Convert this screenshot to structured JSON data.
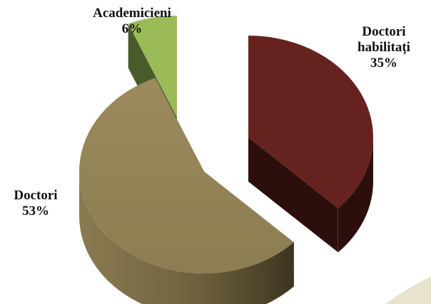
{
  "chart_data": {
    "type": "pie",
    "style": "3d-exploded",
    "title": "",
    "slices": [
      {
        "name": "Doctori habilitați",
        "label_lines": [
          "Doctori",
          "habilitați"
        ],
        "value": 35,
        "value_label": "35%",
        "top_color": "#65221f",
        "side_color": "#2c0f0c"
      },
      {
        "name": "Doctori",
        "label_lines": [
          "Doctori"
        ],
        "value": 53,
        "value_label": "53%",
        "top_color": "#948458",
        "side_color": "#54482a"
      },
      {
        "name": "Academicieni",
        "label_lines": [
          "Academicieni"
        ],
        "value": 6,
        "value_label": "6%",
        "top_color": "#9bbb59",
        "side_color": "#4a5a2a"
      }
    ],
    "grid": false,
    "legend": "none",
    "background_color": "#ffffff"
  }
}
